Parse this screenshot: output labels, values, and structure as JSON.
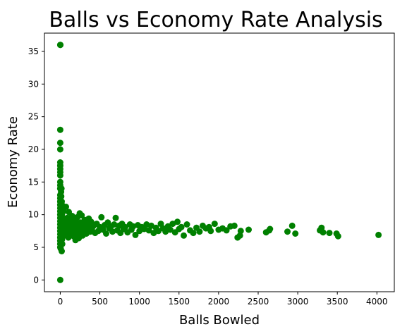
{
  "chart_data": {
    "type": "scatter",
    "title": "Balls vs Economy Rate Analysis",
    "xlabel": "Balls Bowled",
    "ylabel": "Economy Rate",
    "xlim": [
      -200,
      4220
    ],
    "ylim": [
      -1.8,
      37.8
    ],
    "xticks": [
      0,
      500,
      1000,
      1500,
      2000,
      2500,
      3000,
      3500,
      4000
    ],
    "yticks": [
      0,
      5,
      10,
      15,
      20,
      25,
      30,
      35
    ],
    "marker_color": "#008000",
    "grid": false,
    "points": [
      [
        0,
        36
      ],
      [
        1,
        36
      ],
      [
        0,
        0
      ],
      [
        0,
        23
      ],
      [
        0,
        21
      ],
      [
        0,
        20
      ],
      [
        0,
        18
      ],
      [
        0,
        17.5
      ],
      [
        0,
        17
      ],
      [
        0,
        16.5
      ],
      [
        0,
        16
      ],
      [
        0,
        15
      ],
      [
        0,
        14.5
      ],
      [
        0,
        14
      ],
      [
        0,
        13
      ],
      [
        0,
        12.5
      ],
      [
        0,
        12
      ],
      [
        0,
        11.5
      ],
      [
        0,
        11
      ],
      [
        0,
        10.5
      ],
      [
        0,
        10
      ],
      [
        0,
        9.5
      ],
      [
        0,
        9
      ],
      [
        0,
        8.5
      ],
      [
        0,
        8
      ],
      [
        0,
        7.5
      ],
      [
        0,
        7
      ],
      [
        0,
        6.5
      ],
      [
        0,
        6
      ],
      [
        0,
        5.5
      ],
      [
        0,
        5
      ],
      [
        6,
        4.8
      ],
      [
        10,
        13.5
      ],
      [
        12,
        12.8
      ],
      [
        15,
        14
      ],
      [
        18,
        12
      ],
      [
        20,
        11.5
      ],
      [
        8,
        10.8
      ],
      [
        14,
        9.8
      ],
      [
        24,
        10.2
      ],
      [
        30,
        9
      ],
      [
        36,
        8.2
      ],
      [
        42,
        7.5
      ],
      [
        48,
        6.8
      ],
      [
        18,
        4.4
      ],
      [
        25,
        5.5
      ],
      [
        22,
        6.2
      ],
      [
        35,
        11
      ],
      [
        40,
        10.5
      ],
      [
        28,
        9.6
      ],
      [
        55,
        9.2
      ],
      [
        60,
        8.6
      ],
      [
        65,
        7.8
      ],
      [
        70,
        7.2
      ],
      [
        72,
        11.2
      ],
      [
        80,
        8.8
      ],
      [
        85,
        7
      ],
      [
        90,
        9.5
      ],
      [
        96,
        8
      ],
      [
        102,
        6.5
      ],
      [
        108,
        10.4
      ],
      [
        114,
        7.6
      ],
      [
        120,
        8.4
      ],
      [
        126,
        9.1
      ],
      [
        132,
        7.3
      ],
      [
        138,
        6.9
      ],
      [
        144,
        8.7
      ],
      [
        150,
        9.8
      ],
      [
        156,
        7.9
      ],
      [
        162,
        8.2
      ],
      [
        168,
        6.7
      ],
      [
        174,
        7.5
      ],
      [
        180,
        9.3
      ],
      [
        186,
        8.5
      ],
      [
        192,
        6.1
      ],
      [
        198,
        7.7
      ],
      [
        204,
        8.9
      ],
      [
        210,
        7.4
      ],
      [
        216,
        9.6
      ],
      [
        222,
        8.1
      ],
      [
        228,
        7
      ],
      [
        234,
        6.4
      ],
      [
        240,
        8.3
      ],
      [
        246,
        10.2
      ],
      [
        252,
        7.6
      ],
      [
        258,
        8.8
      ],
      [
        264,
        7.2
      ],
      [
        270,
        9.9
      ],
      [
        276,
        8.4
      ],
      [
        282,
        6.8
      ],
      [
        288,
        7.9
      ],
      [
        294,
        8.6
      ],
      [
        300,
        7.3
      ],
      [
        310,
        9.2
      ],
      [
        320,
        8
      ],
      [
        330,
        7.1
      ],
      [
        340,
        8.7
      ],
      [
        350,
        7.6
      ],
      [
        360,
        9.4
      ],
      [
        370,
        8.2
      ],
      [
        380,
        7.4
      ],
      [
        390,
        8.9
      ],
      [
        400,
        7.8
      ],
      [
        420,
        8.3
      ],
      [
        440,
        7.2
      ],
      [
        460,
        8.6
      ],
      [
        480,
        7.5
      ],
      [
        500,
        8.1
      ],
      [
        520,
        9.6
      ],
      [
        540,
        7.7
      ],
      [
        560,
        8.4
      ],
      [
        580,
        7.1
      ],
      [
        600,
        8.8
      ],
      [
        620,
        7.9
      ],
      [
        640,
        8.2
      ],
      [
        660,
        7.4
      ],
      [
        680,
        8.5
      ],
      [
        700,
        9.5
      ],
      [
        720,
        7.6
      ],
      [
        740,
        8.3
      ],
      [
        760,
        7.2
      ],
      [
        780,
        8.6
      ],
      [
        800,
        7.8
      ],
      [
        820,
        8.1
      ],
      [
        850,
        7.3
      ],
      [
        880,
        8.5
      ],
      [
        900,
        7.7
      ],
      [
        920,
        8.2
      ],
      [
        950,
        6.9
      ],
      [
        980,
        8.4
      ],
      [
        1000,
        7.5
      ],
      [
        1030,
        8.1
      ],
      [
        1060,
        7.8
      ],
      [
        1090,
        8.5
      ],
      [
        1120,
        7.6
      ],
      [
        1150,
        8.3
      ],
      [
        1180,
        7.2
      ],
      [
        1210,
        8
      ],
      [
        1240,
        7.5
      ],
      [
        1270,
        8.6
      ],
      [
        1300,
        7.9
      ],
      [
        1330,
        7.4
      ],
      [
        1360,
        8.2
      ],
      [
        1390,
        7.7
      ],
      [
        1420,
        8.6
      ],
      [
        1450,
        7.3
      ],
      [
        1480,
        8.9
      ],
      [
        1500,
        7.8
      ],
      [
        1530,
        8.1
      ],
      [
        1560,
        6.8
      ],
      [
        1600,
        8.5
      ],
      [
        1640,
        7.6
      ],
      [
        1680,
        7.2
      ],
      [
        1720,
        8
      ],
      [
        1760,
        7.4
      ],
      [
        1800,
        8.3
      ],
      [
        1840,
        7.9
      ],
      [
        1880,
        8.1
      ],
      [
        1900,
        7.5
      ],
      [
        1950,
        8.6
      ],
      [
        2000,
        7.7
      ],
      [
        2050,
        7.9
      ],
      [
        2100,
        7.6
      ],
      [
        2150,
        8.2
      ],
      [
        2200,
        8.3
      ],
      [
        2240,
        6.5
      ],
      [
        2270,
        6.8
      ],
      [
        2280,
        7.5
      ],
      [
        2380,
        7.7
      ],
      [
        2600,
        7.3
      ],
      [
        2640,
        7.6
      ],
      [
        2650,
        7.8
      ],
      [
        2870,
        7.4
      ],
      [
        2930,
        8.3
      ],
      [
        2970,
        7.1
      ],
      [
        3280,
        7.6
      ],
      [
        3300,
        8
      ],
      [
        3320,
        7.3
      ],
      [
        3400,
        7.2
      ],
      [
        3490,
        7.1
      ],
      [
        3510,
        6.7
      ],
      [
        4020,
        6.9
      ]
    ]
  }
}
